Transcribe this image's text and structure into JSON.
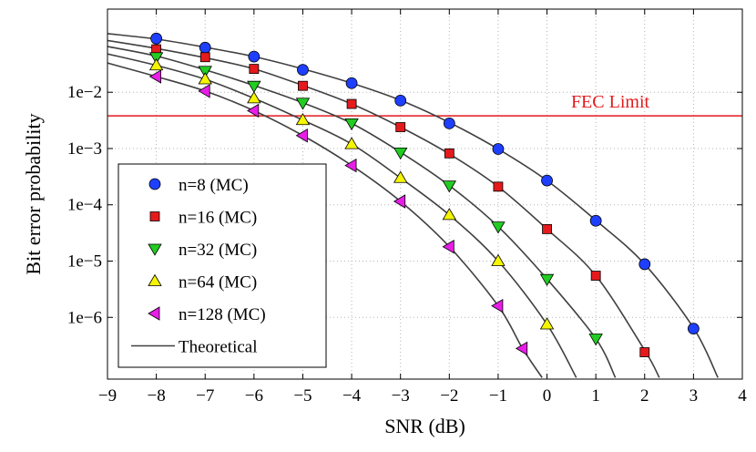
{
  "chart_data": {
    "type": "line",
    "xlabel": "SNR (dB)",
    "ylabel": "Bit error probability",
    "xlim": [
      -9,
      4
    ],
    "ylim": [
      8e-08,
      0.3
    ],
    "yscale": "log",
    "grid": true,
    "x_ticks": [
      -9,
      -8,
      -7,
      -6,
      -5,
      -4,
      -3,
      -2,
      -1,
      0,
      1,
      2,
      3,
      4
    ],
    "x_tick_labels": [
      "−9",
      "−8",
      "−7",
      "−6",
      "−5",
      "−4",
      "−3",
      "−2",
      "−1",
      "0",
      "1",
      "2",
      "3",
      "4"
    ],
    "y_ticks": [
      0.01,
      0.001,
      0.0001,
      1e-05,
      1e-06
    ],
    "y_tick_labels": [
      "1e−2",
      "1e−3",
      "1e−4",
      "1e−5",
      "1e−6"
    ],
    "hline": {
      "y": 0.0038,
      "label": "FEC Limit",
      "color": "#e31a1c"
    },
    "legend_position": "bottom-left",
    "theory_label": "Theoretical",
    "theory_color": "#404040",
    "series": [
      {
        "name": "n=8 (MC)",
        "marker": "circle",
        "color": "#1f3fff",
        "x": [
          -8,
          -7,
          -6,
          -5,
          -4,
          -3,
          -2,
          -1,
          0,
          1,
          2,
          3
        ],
        "y": [
          0.09,
          0.062,
          0.043,
          0.025,
          0.0145,
          0.0071,
          0.0028,
          0.00098,
          0.00027,
          5.2e-05,
          8.8e-06,
          6.3e-07
        ]
      },
      {
        "name": "n=16 (MC)",
        "marker": "square",
        "color": "#e41a1c",
        "x": [
          -8,
          -7,
          -6,
          -5,
          -4,
          -3,
          -2,
          -1,
          0,
          1,
          2
        ],
        "y": [
          0.058,
          0.042,
          0.026,
          0.013,
          0.0062,
          0.0024,
          0.00082,
          0.00021,
          3.7e-05,
          5.5e-06,
          2.4e-07
        ]
      },
      {
        "name": "n=32 (MC)",
        "marker": "triangle-down",
        "color": "#22cc22",
        "x": [
          -8,
          -7,
          -6,
          -5,
          -4,
          -3,
          -2,
          -1,
          0,
          1
        ],
        "y": [
          0.042,
          0.024,
          0.013,
          0.0065,
          0.0028,
          0.00085,
          0.00022,
          4.1e-05,
          4.8e-06,
          4.2e-07
        ]
      },
      {
        "name": "n=64 (MC)",
        "marker": "triangle-up",
        "color": "#f5f500",
        "x": [
          -8,
          -7,
          -6,
          -5,
          -4,
          -3,
          -2,
          -1,
          0
        ],
        "y": [
          0.03,
          0.017,
          0.0078,
          0.0032,
          0.0012,
          0.0003,
          6.6e-05,
          1e-05,
          7.5e-07
        ]
      },
      {
        "name": "n=128 (MC)",
        "marker": "triangle-left",
        "color": "#e61ee6",
        "x": [
          -8,
          -7,
          -6,
          -5,
          -4,
          -3,
          -2,
          -1,
          -0.5
        ],
        "y": [
          0.019,
          0.0105,
          0.0047,
          0.0017,
          0.0005,
          0.000115,
          1.8e-05,
          1.6e-06,
          2.8e-07
        ]
      }
    ],
    "theory": [
      {
        "name": "n=8",
        "x": [
          -9,
          -8,
          -7,
          -6,
          -5,
          -4,
          -3,
          -2,
          -1,
          0,
          1,
          2,
          3,
          3.5
        ],
        "y": [
          0.11,
          0.088,
          0.063,
          0.043,
          0.026,
          0.0145,
          0.0072,
          0.0029,
          0.00098,
          0.00027,
          5.3e-05,
          8.8e-06,
          6.5e-07,
          8.5e-08
        ]
      },
      {
        "name": "n=16",
        "x": [
          -9,
          -8,
          -7,
          -6,
          -5,
          -4,
          -3,
          -2,
          -1,
          0,
          1,
          2,
          2.3
        ],
        "y": [
          0.083,
          0.06,
          0.041,
          0.026,
          0.0132,
          0.0062,
          0.0024,
          0.0008,
          0.00021,
          3.7e-05,
          5.5e-06,
          2.6e-07,
          8.5e-08
        ]
      },
      {
        "name": "n=32",
        "x": [
          -9,
          -8,
          -7,
          -6,
          -5,
          -4,
          -3,
          -2,
          -1,
          0,
          1,
          1.4
        ],
        "y": [
          0.065,
          0.044,
          0.025,
          0.0132,
          0.0065,
          0.0028,
          0.00086,
          0.00022,
          4.1e-05,
          4.8e-06,
          4.2e-07,
          8.5e-08
        ]
      },
      {
        "name": "n=64",
        "x": [
          -9,
          -8,
          -7,
          -6,
          -5,
          -4,
          -3,
          -2,
          -1,
          0,
          0.6
        ],
        "y": [
          0.048,
          0.03,
          0.017,
          0.0078,
          0.0032,
          0.0012,
          0.0003,
          6.6e-05,
          1e-05,
          7.5e-07,
          8.5e-08
        ]
      },
      {
        "name": "n=128",
        "x": [
          -9,
          -8,
          -7,
          -6,
          -5,
          -4,
          -3,
          -2,
          -1,
          -0.5,
          -0.1
        ],
        "y": [
          0.033,
          0.019,
          0.0105,
          0.0047,
          0.0017,
          0.0005,
          0.000115,
          1.8e-05,
          1.6e-06,
          2.8e-07,
          8.5e-08
        ]
      }
    ]
  }
}
